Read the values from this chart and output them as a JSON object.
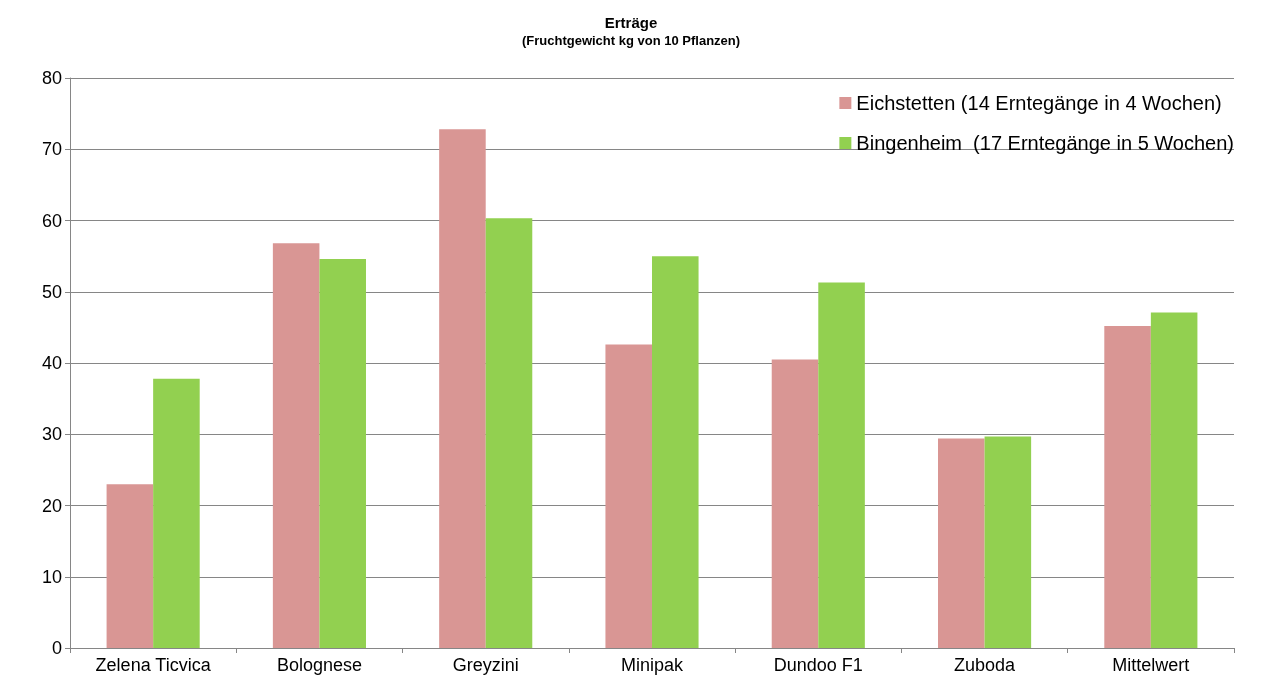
{
  "chart_data": {
    "type": "bar",
    "title": "Erträge",
    "subtitle": "(Fruchtgewicht kg von 10 Pflanzen)",
    "categories": [
      "Zelena Ticvica",
      "Bolognese",
      "Greyzini",
      "Minipak",
      "Dundoo F1",
      "Zuboda",
      "Mittelwert"
    ],
    "series": [
      {
        "name": "Eichstetten (14 Erntegänge in 4 Wochen)",
        "color": "#d99694",
        "values": [
          23,
          56.8,
          72.8,
          42.6,
          40.5,
          29.4,
          45.2
        ]
      },
      {
        "name": "Bingenheim  (17 Erntegänge in 5 Wochen)",
        "color": "#92d050",
        "values": [
          37.8,
          54.6,
          60.3,
          55,
          51.3,
          29.7,
          47.1
        ]
      }
    ],
    "ylim": [
      0,
      80
    ],
    "yticks": [
      0,
      10,
      20,
      30,
      40,
      50,
      60,
      70,
      80
    ],
    "grid": "y",
    "legend": "top right"
  }
}
